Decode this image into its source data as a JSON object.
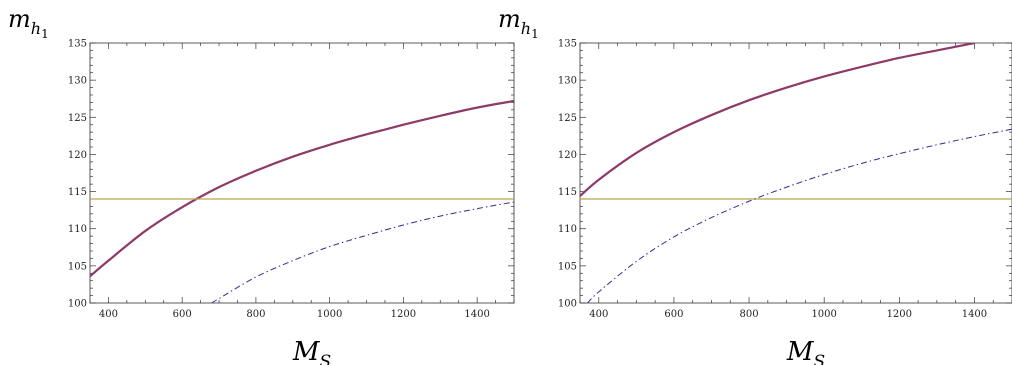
{
  "chart_data": [
    {
      "type": "line",
      "title": "",
      "xlabel": "M",
      "xlabel_sub": "S",
      "ylabel": "m",
      "ylabel_sub": "h",
      "ylabel_subsub": "1",
      "xlim": [
        350,
        1500
      ],
      "ylim": [
        100,
        135
      ],
      "xticks": [
        400,
        600,
        800,
        1000,
        1200,
        1400
      ],
      "yticks": [
        100,
        105,
        110,
        115,
        120,
        125,
        130,
        135
      ],
      "grid": false,
      "legend": "none",
      "series": [
        {
          "style": "solid",
          "color": "#8e3a68",
          "width": 2.2,
          "x": [
            350,
            400,
            500,
            600,
            700,
            800,
            900,
            1000,
            1100,
            1200,
            1300,
            1400,
            1500
          ],
          "y": [
            103.6,
            105.7,
            109.7,
            112.9,
            115.6,
            117.8,
            119.7,
            121.3,
            122.7,
            124.0,
            125.2,
            126.3,
            127.2
          ]
        },
        {
          "style": "solid",
          "color": "#b8a64a",
          "width": 1.2,
          "x": [
            350,
            1500
          ],
          "y": [
            114.0,
            114.0
          ]
        },
        {
          "style": "dashdot",
          "color": "#2e2e8c",
          "width": 1.0,
          "x": [
            680,
            700,
            800,
            900,
            1000,
            1100,
            1200,
            1300,
            1400,
            1500
          ],
          "y": [
            100.0,
            100.6,
            103.5,
            105.7,
            107.6,
            109.1,
            110.5,
            111.7,
            112.7,
            113.6
          ]
        }
      ]
    },
    {
      "type": "line",
      "title": "",
      "xlabel": "M",
      "xlabel_sub": "S",
      "ylabel": "m",
      "ylabel_sub": "h",
      "ylabel_subsub": "1",
      "xlim": [
        350,
        1500
      ],
      "ylim": [
        100,
        135
      ],
      "xticks": [
        400,
        600,
        800,
        1000,
        1200,
        1400
      ],
      "yticks": [
        100,
        105,
        110,
        115,
        120,
        125,
        130,
        135
      ],
      "grid": false,
      "legend": "none",
      "series": [
        {
          "style": "solid",
          "color": "#8e3a68",
          "width": 2.2,
          "x": [
            350,
            400,
            500,
            600,
            700,
            800,
            900,
            1000,
            1100,
            1200,
            1300,
            1400
          ],
          "y": [
            114.4,
            116.6,
            120.2,
            123.0,
            125.3,
            127.3,
            129.0,
            130.5,
            131.8,
            133.0,
            134.0,
            135.0
          ]
        },
        {
          "style": "solid",
          "color": "#b8a64a",
          "width": 1.2,
          "x": [
            350,
            1500
          ],
          "y": [
            114.0,
            114.0
          ]
        },
        {
          "style": "dashdot",
          "color": "#2e2e8c",
          "width": 1.0,
          "x": [
            370,
            400,
            500,
            600,
            700,
            800,
            900,
            1000,
            1100,
            1200,
            1300,
            1400,
            1500
          ],
          "y": [
            100.0,
            101.5,
            105.6,
            108.9,
            111.5,
            113.7,
            115.6,
            117.3,
            118.8,
            120.1,
            121.3,
            122.4,
            123.4
          ]
        }
      ]
    }
  ]
}
